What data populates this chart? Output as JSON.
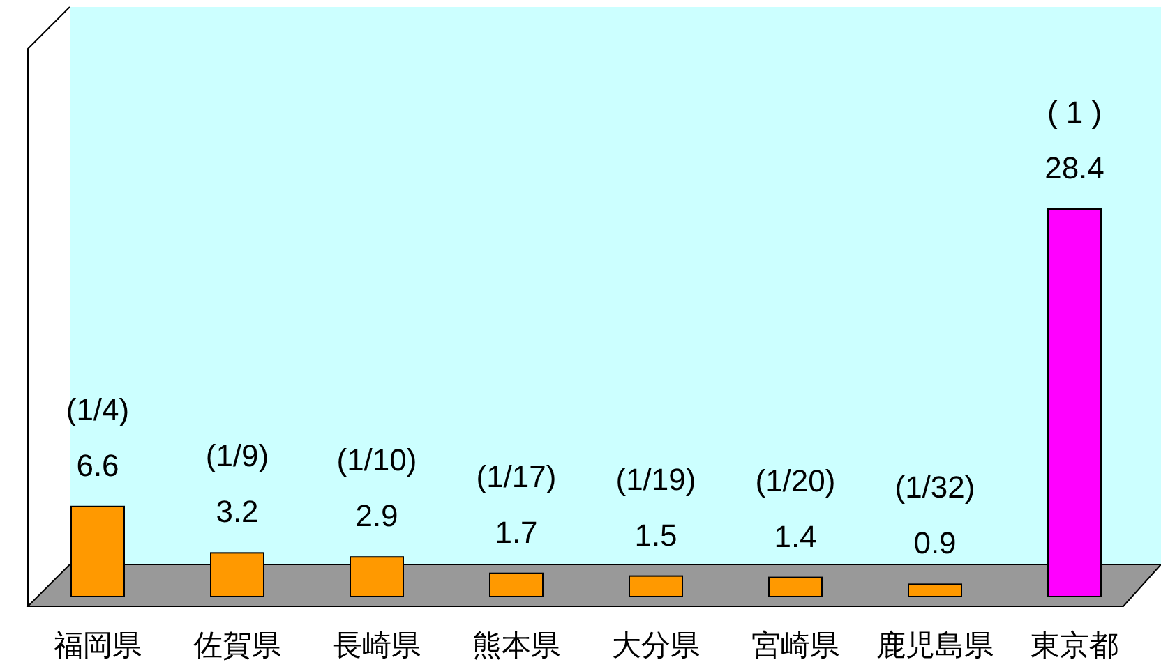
{
  "chart_data": {
    "type": "bar",
    "categories": [
      "福岡県",
      "佐賀県",
      "長崎県",
      "熊本県",
      "大分県",
      "宮崎県",
      "鹿児島県",
      "東京都"
    ],
    "values": [
      6.6,
      3.2,
      2.9,
      1.7,
      1.5,
      1.4,
      0.9,
      28.4
    ],
    "colors": [
      "#ff9900",
      "#ff9900",
      "#ff9900",
      "#ff9900",
      "#ff9900",
      "#ff9900",
      "#ff9900",
      "#ff00ff"
    ],
    "data_labels": true,
    "annotations": [
      {
        "text": "(1/4)",
        "x": "福岡県",
        "y": 6.6
      },
      {
        "text": "(1/9)",
        "x": "佐賀県",
        "y": 3.2
      },
      {
        "text": "(1/10)",
        "x": "長崎県",
        "y": 2.9
      },
      {
        "text": "(1/17)",
        "x": "熊本県",
        "y": 1.7
      },
      {
        "text": "(1/19)",
        "x": "大分県",
        "y": 1.5
      },
      {
        "text": "(1/20)",
        "x": "宮崎県",
        "y": 1.4
      },
      {
        "text": "(1/32)",
        "x": "鹿児島県",
        "y": 0.9
      },
      {
        "text": "( 1 )",
        "x": "東京都",
        "y": 28.4
      }
    ]
  }
}
